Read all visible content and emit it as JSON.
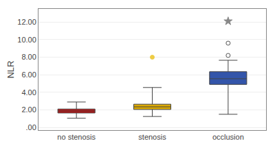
{
  "chart_data": {
    "type": "box",
    "categories": [
      "no stenosis",
      "stenosis",
      "occlusion"
    ],
    "colors": [
      "#bb1111",
      "#ddaa00",
      "#3355aa"
    ],
    "ylabel": "NLR",
    "ylim": [
      -0.3,
      13.5
    ],
    "yticks": [
      {
        "value": 0,
        "label": ".00"
      },
      {
        "value": 2,
        "label": "2.00"
      },
      {
        "value": 4,
        "label": "4.00"
      },
      {
        "value": 6,
        "label": "6.00"
      },
      {
        "value": 8,
        "label": "8.00"
      },
      {
        "value": 10,
        "label": "10.00"
      },
      {
        "value": 12,
        "label": "12.00"
      }
    ],
    "grid": true,
    "boxes": [
      {
        "q1": 1.65,
        "median": 1.88,
        "q3": 2.1,
        "whislo": 1.05,
        "whishi": 2.9,
        "fliers": []
      },
      {
        "q1": 2.05,
        "median": 2.35,
        "q3": 2.65,
        "whislo": 1.25,
        "whishi": 4.55,
        "fliers": [
          {
            "value": 8.0,
            "marker": "circle",
            "color": "#eecc44"
          }
        ]
      },
      {
        "q1": 4.9,
        "median": 5.55,
        "q3": 6.35,
        "whislo": 1.5,
        "whishi": 7.65,
        "fliers": [
          {
            "value": 8.2,
            "marker": "circle-open",
            "color": "#555555"
          },
          {
            "value": 9.6,
            "marker": "circle-open",
            "color": "#555555"
          },
          {
            "value": 12.1,
            "marker": "star",
            "color": "#888888"
          }
        ]
      }
    ]
  }
}
